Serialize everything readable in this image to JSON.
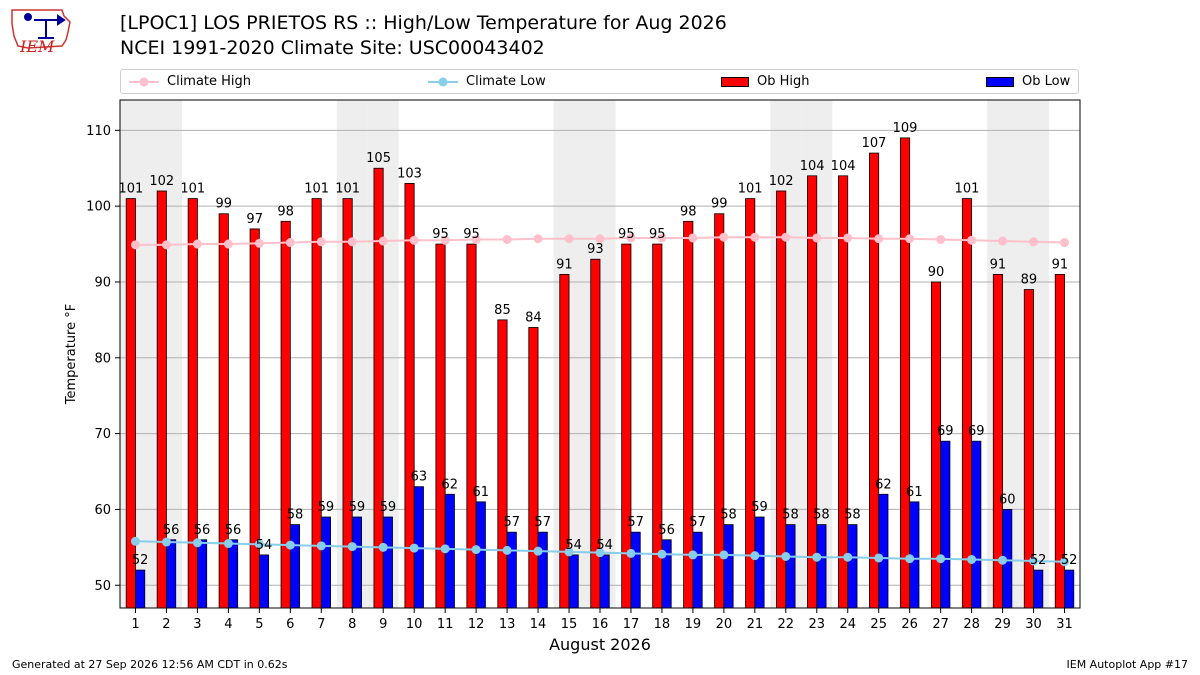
{
  "header": {
    "title_line1": "[LPOC1] LOS PRIETOS RS :: High/Low Temperature for Aug 2026",
    "title_line2": "NCEI 1991-2020 Climate Site: USC00043402"
  },
  "logo": {
    "text": "IEM"
  },
  "legend": {
    "climate_high": "Climate High",
    "climate_low": "Climate Low",
    "ob_high": "Ob High",
    "ob_low": "Ob Low"
  },
  "colors": {
    "ob_high": "#ff0000",
    "ob_low": "#0000ff",
    "climate_high": "#ffc0cb",
    "climate_low": "#87ceeb",
    "weekend_band": "#eeeeee"
  },
  "footer": {
    "left": "Generated at 27 Sep 2026 12:56 AM CDT in 0.62s",
    "right": "IEM Autoplot App #17"
  },
  "chart_data": {
    "type": "bar",
    "xlabel": "August 2026",
    "ylabel": "Temperature °F",
    "ylim": [
      47,
      114
    ],
    "yticks": [
      50,
      60,
      70,
      80,
      90,
      100,
      110
    ],
    "grid": true,
    "legend_position": "top",
    "categories": [
      "1",
      "2",
      "3",
      "4",
      "5",
      "6",
      "7",
      "8",
      "9",
      "10",
      "11",
      "12",
      "13",
      "14",
      "15",
      "16",
      "17",
      "18",
      "19",
      "20",
      "21",
      "22",
      "23",
      "24",
      "25",
      "26",
      "27",
      "28",
      "29",
      "30",
      "31"
    ],
    "weekend_days": [
      1,
      2,
      8,
      9,
      15,
      16,
      22,
      23,
      29,
      30
    ],
    "series": [
      {
        "name": "Ob High",
        "kind": "bar",
        "values": [
          101,
          102,
          101,
          99,
          97,
          98,
          101,
          101,
          105,
          103,
          95,
          95,
          85,
          84,
          91,
          93,
          95,
          95,
          98,
          99,
          101,
          102,
          104,
          104,
          107,
          109,
          90,
          101,
          91,
          89,
          91
        ]
      },
      {
        "name": "Ob Low",
        "kind": "bar",
        "values": [
          52,
          56,
          56,
          56,
          54,
          58,
          59,
          59,
          59,
          63,
          62,
          61,
          57,
          57,
          54,
          54,
          57,
          56,
          57,
          58,
          59,
          58,
          58,
          58,
          62,
          61,
          69,
          69,
          60,
          52,
          52
        ]
      },
      {
        "name": "Climate High",
        "kind": "line",
        "values": [
          94.9,
          94.9,
          95.0,
          95.0,
          95.1,
          95.2,
          95.3,
          95.3,
          95.4,
          95.5,
          95.5,
          95.6,
          95.6,
          95.7,
          95.7,
          95.7,
          95.8,
          95.8,
          95.8,
          95.9,
          95.9,
          95.9,
          95.8,
          95.8,
          95.7,
          95.7,
          95.6,
          95.5,
          95.4,
          95.3,
          95.2
        ]
      },
      {
        "name": "Climate Low",
        "kind": "line",
        "values": [
          55.8,
          55.7,
          55.6,
          55.5,
          55.4,
          55.3,
          55.2,
          55.1,
          55.0,
          54.9,
          54.8,
          54.7,
          54.6,
          54.5,
          54.4,
          54.3,
          54.2,
          54.1,
          54.0,
          54.0,
          53.9,
          53.8,
          53.7,
          53.7,
          53.6,
          53.5,
          53.5,
          53.4,
          53.3,
          53.2,
          53.1
        ]
      }
    ]
  }
}
